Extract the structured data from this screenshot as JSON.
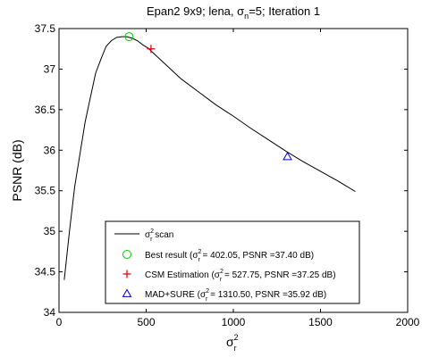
{
  "chart_data": {
    "type": "line",
    "title": {
      "prefix": "Epan2 9x9; lena, ",
      "sigma_sub": "n",
      "suffix": "=5; Iteration 1"
    },
    "xlabel": {
      "base": "σ",
      "sup": "2",
      "sub": "r"
    },
    "ylabel": "PSNR (dB)",
    "xlim": [
      0,
      2000
    ],
    "ylim": [
      34,
      37.5
    ],
    "xticks": [
      0,
      500,
      1000,
      1500,
      2000
    ],
    "yticks": [
      34,
      34.5,
      35,
      35.5,
      36,
      36.5,
      37,
      37.5
    ],
    "grid": false,
    "legend_position": "lower-center",
    "series": [
      {
        "marker": "line",
        "color": "#000000",
        "x": [
          30,
          60,
          90,
          120,
          150,
          180,
          210,
          240,
          270,
          300,
          330,
          360,
          390,
          420,
          450,
          480,
          510,
          540,
          570,
          600,
          700,
          800,
          900,
          1000,
          1100,
          1200,
          1300,
          1400,
          1500,
          1600,
          1700
        ],
        "y": [
          34.4,
          35.0,
          35.55,
          35.95,
          36.35,
          36.65,
          36.95,
          37.12,
          37.28,
          37.35,
          37.39,
          37.4,
          37.4,
          37.38,
          37.35,
          37.3,
          37.26,
          37.2,
          37.14,
          37.08,
          36.88,
          36.72,
          36.56,
          36.42,
          36.27,
          36.13,
          35.99,
          35.86,
          35.74,
          35.62,
          35.49
        ]
      }
    ],
    "points": [
      {
        "marker": "circle",
        "color": "#00cc00",
        "x": 402.05,
        "y": 37.4
      },
      {
        "marker": "plus",
        "color": "#dd0000",
        "x": 527.75,
        "y": 37.25
      },
      {
        "marker": "triangle",
        "color": "#0000cc",
        "x": 1310.5,
        "y": 35.92
      }
    ],
    "legend": [
      {
        "marker": "line",
        "color": "#000000",
        "pre": "σ",
        "sup": "2",
        "sub": "r",
        "post": " scan"
      },
      {
        "marker": "circle",
        "color": "#00cc00",
        "pre": "Best result (σ",
        "sup": "2",
        "sub": "r",
        "post": " = 402.05, PSNR =37.40 dB)"
      },
      {
        "marker": "plus",
        "color": "#dd0000",
        "pre": "CSM Estimation (σ",
        "sup": "2",
        "sub": "r",
        "post": " = 527.75, PSNR =37.25 dB)"
      },
      {
        "marker": "triangle",
        "color": "#0000cc",
        "pre": "MAD+SURE (σ",
        "sup": "2",
        "sub": "r",
        "post": " = 1310.50, PSNR =35.92 dB)"
      }
    ]
  }
}
